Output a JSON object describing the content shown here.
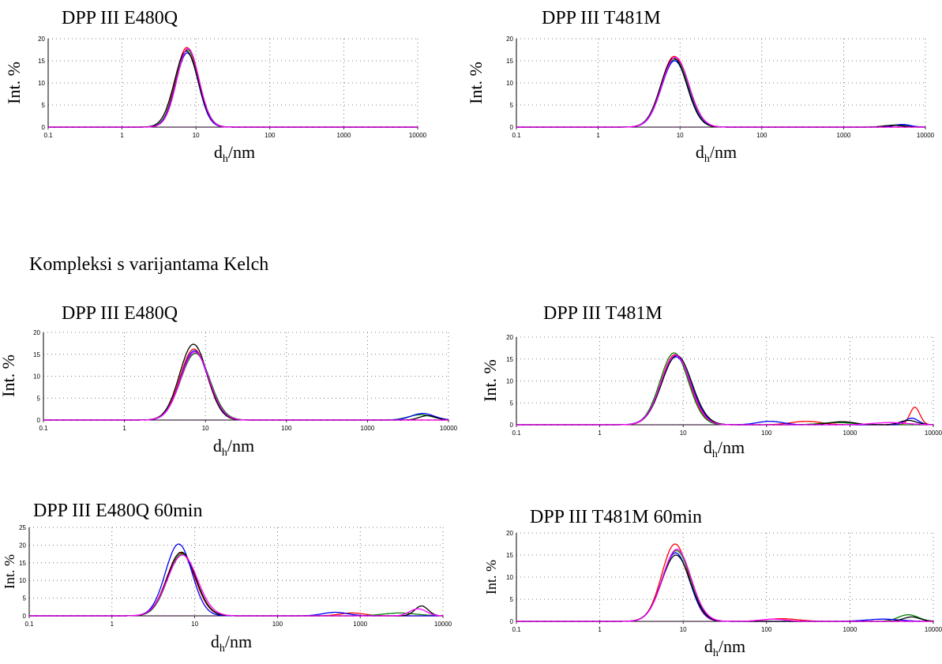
{
  "section_heading": "Kompleksi s varijantama Kelch",
  "colors": {
    "series": [
      "#ff0000",
      "#008000",
      "#0000ff",
      "#000000",
      "#ff00ff",
      "#800080",
      "#ffa500"
    ]
  },
  "chart_data": [
    {
      "type": "line",
      "title": "DPP III E480Q",
      "ylabel": "Int. %",
      "xlabel": "d",
      "xlabel_sub": "h",
      "xlabel_suffix": "/nm",
      "x_scale": "log",
      "xlim": [
        0.1,
        10000
      ],
      "ylim": [
        0,
        20
      ],
      "yticks": [
        0,
        5,
        10,
        15,
        20
      ],
      "xticks": [
        "0.1",
        "1",
        "10",
        "100",
        "1000",
        "10000"
      ],
      "grid": true,
      "series": [
        {
          "peaks": [
            {
              "mu": 7.5,
              "sigma": 0.15,
              "height": 18.0
            }
          ]
        },
        {
          "peaks": [
            {
              "mu": 7.7,
              "sigma": 0.155,
              "height": 17.5
            }
          ]
        },
        {
          "peaks": [
            {
              "mu": 7.6,
              "sigma": 0.15,
              "height": 16.8
            }
          ]
        },
        {
          "peaks": [
            {
              "mu": 7.4,
              "sigma": 0.16,
              "height": 17.2
            }
          ]
        },
        {
          "peaks": [
            {
              "mu": 7.8,
              "sigma": 0.15,
              "height": 17.8
            }
          ]
        }
      ]
    },
    {
      "type": "line",
      "title": "DPP III T481M",
      "ylabel": "Int. %",
      "xlabel": "d",
      "xlabel_sub": "h",
      "xlabel_suffix": "/nm",
      "x_scale": "log",
      "xlim": [
        0.1,
        10000
      ],
      "ylim": [
        0,
        20
      ],
      "yticks": [
        0,
        5,
        10,
        15,
        20
      ],
      "xticks": [
        "0.1",
        "1",
        "10",
        "100",
        "1000",
        "10000"
      ],
      "grid": true,
      "series": [
        {
          "peaks": [
            {
              "mu": 8.5,
              "sigma": 0.16,
              "height": 16.0
            }
          ]
        },
        {
          "peaks": [
            {
              "mu": 8.7,
              "sigma": 0.165,
              "height": 15.3
            },
            {
              "mu": 4500,
              "sigma": 0.12,
              "height": 0.5
            }
          ]
        },
        {
          "peaks": [
            {
              "mu": 8.6,
              "sigma": 0.16,
              "height": 15.0
            },
            {
              "mu": 5200,
              "sigma": 0.1,
              "height": 0.6
            }
          ]
        },
        {
          "peaks": [
            {
              "mu": 8.4,
              "sigma": 0.16,
              "height": 15.6
            },
            {
              "mu": 4000,
              "sigma": 0.12,
              "height": 0.4
            }
          ]
        },
        {
          "peaks": [
            {
              "mu": 8.8,
              "sigma": 0.165,
              "height": 15.8
            }
          ]
        }
      ]
    },
    {
      "type": "line",
      "title": "DPP III E480Q",
      "ylabel": "Int. %",
      "xlabel": "d",
      "xlabel_sub": "h",
      "xlabel_suffix": "/nm",
      "x_scale": "log",
      "xlim": [
        0.1,
        10000
      ],
      "ylim": [
        0,
        20
      ],
      "yticks": [
        0,
        5,
        10,
        15,
        20
      ],
      "xticks": [
        "0.1",
        "1",
        "10",
        "100",
        "1000",
        "10000"
      ],
      "grid": true,
      "series": [
        {
          "peaks": [
            {
              "mu": 7.2,
              "sigma": 0.17,
              "height": 16.2
            }
          ]
        },
        {
          "peaks": [
            {
              "mu": 7.5,
              "sigma": 0.18,
              "height": 15.2
            },
            {
              "mu": 4500,
              "sigma": 0.15,
              "height": 1.2
            }
          ]
        },
        {
          "peaks": [
            {
              "mu": 7.3,
              "sigma": 0.17,
              "height": 15.8
            },
            {
              "mu": 4800,
              "sigma": 0.14,
              "height": 1.5
            }
          ]
        },
        {
          "peaks": [
            {
              "mu": 7.1,
              "sigma": 0.17,
              "height": 17.3
            },
            {
              "mu": 5500,
              "sigma": 0.1,
              "height": 1.0
            }
          ]
        },
        {
          "peaks": [
            {
              "mu": 7.4,
              "sigma": 0.175,
              "height": 15.5
            }
          ]
        }
      ]
    },
    {
      "type": "line",
      "title": "DPP III T481M",
      "ylabel": "Int. %",
      "xlabel": "d",
      "xlabel_sub": "h",
      "xlabel_suffix": "/nm",
      "x_scale": "log",
      "xlim": [
        0.1,
        10000
      ],
      "ylim": [
        0,
        20
      ],
      "yticks": [
        0,
        5,
        10,
        15,
        20
      ],
      "xticks": [
        "0.1",
        "1",
        "10",
        "100",
        "1000",
        "10000"
      ],
      "grid": true,
      "series": [
        {
          "peaks": [
            {
              "mu": 8.0,
              "sigma": 0.17,
              "height": 16.0
            },
            {
              "mu": 300,
              "sigma": 0.18,
              "height": 0.8
            },
            {
              "mu": 6000,
              "sigma": 0.06,
              "height": 4.0
            }
          ]
        },
        {
          "peaks": [
            {
              "mu": 7.8,
              "sigma": 0.17,
              "height": 16.4
            },
            {
              "mu": 700,
              "sigma": 0.2,
              "height": 0.5
            }
          ]
        },
        {
          "peaks": [
            {
              "mu": 8.2,
              "sigma": 0.18,
              "height": 15.5
            },
            {
              "mu": 110,
              "sigma": 0.15,
              "height": 0.8
            },
            {
              "mu": 5500,
              "sigma": 0.08,
              "height": 1.5
            }
          ]
        },
        {
          "peaks": [
            {
              "mu": 8.4,
              "sigma": 0.18,
              "height": 15.8
            },
            {
              "mu": 800,
              "sigma": 0.15,
              "height": 0.7
            },
            {
              "mu": 5000,
              "sigma": 0.1,
              "height": 1.0
            }
          ]
        },
        {
          "peaks": [
            {
              "mu": 8.1,
              "sigma": 0.175,
              "height": 15.9
            },
            {
              "mu": 3000,
              "sigma": 0.2,
              "height": 0.5
            }
          ]
        }
      ]
    },
    {
      "type": "line",
      "title": "DPP III E480Q 60min",
      "ylabel": "Int. %",
      "xlabel": "d",
      "xlabel_sub": "h",
      "xlabel_suffix": "/nm",
      "x_scale": "log",
      "xlim": [
        0.1,
        10000
      ],
      "ylim": [
        0,
        25
      ],
      "yticks": [
        0,
        5,
        10,
        15,
        20,
        25
      ],
      "xticks": [
        "0.1",
        "1",
        "10",
        "100",
        "1000",
        "10000"
      ],
      "grid": true,
      "series": [
        {
          "peaks": [
            {
              "mu": 6.8,
              "sigma": 0.17,
              "height": 17.8
            },
            {
              "mu": 800,
              "sigma": 0.15,
              "height": 0.8
            }
          ]
        },
        {
          "peaks": [
            {
              "mu": 7.0,
              "sigma": 0.17,
              "height": 17.5
            },
            {
              "mu": 3000,
              "sigma": 0.2,
              "height": 0.8
            }
          ]
        },
        {
          "peaks": [
            {
              "mu": 6.4,
              "sigma": 0.16,
              "height": 20.3
            },
            {
              "mu": 500,
              "sigma": 0.15,
              "height": 1.0
            }
          ]
        },
        {
          "peaks": [
            {
              "mu": 6.9,
              "sigma": 0.17,
              "height": 18.0
            },
            {
              "mu": 5500,
              "sigma": 0.08,
              "height": 2.8
            }
          ]
        },
        {
          "peaks": [
            {
              "mu": 7.1,
              "sigma": 0.18,
              "height": 17.2
            },
            {
              "mu": 5000,
              "sigma": 0.1,
              "height": 2.0
            }
          ]
        }
      ]
    },
    {
      "type": "line",
      "title": "DPP III T481M 60min",
      "ylabel": "Int. %",
      "xlabel": "d",
      "xlabel_sub": "h",
      "xlabel_suffix": "/nm",
      "x_scale": "log",
      "xlim": [
        0.1,
        10000
      ],
      "ylim": [
        0,
        20
      ],
      "yticks": [
        0,
        5,
        10,
        15,
        20
      ],
      "xticks": [
        "0.1",
        "1",
        "10",
        "100",
        "1000",
        "10000"
      ],
      "grid": true,
      "series": [
        {
          "peaks": [
            {
              "mu": 8.0,
              "sigma": 0.16,
              "height": 17.5
            },
            {
              "mu": 150,
              "sigma": 0.2,
              "height": 0.6
            }
          ]
        },
        {
          "peaks": [
            {
              "mu": 8.3,
              "sigma": 0.17,
              "height": 16.0
            },
            {
              "mu": 5000,
              "sigma": 0.12,
              "height": 1.5
            }
          ]
        },
        {
          "peaks": [
            {
              "mu": 8.1,
              "sigma": 0.165,
              "height": 15.5
            },
            {
              "mu": 2500,
              "sigma": 0.2,
              "height": 0.5
            }
          ]
        },
        {
          "peaks": [
            {
              "mu": 8.2,
              "sigma": 0.17,
              "height": 15.0
            },
            {
              "mu": 5500,
              "sigma": 0.1,
              "height": 1.0
            }
          ]
        },
        {
          "peaks": [
            {
              "mu": 8.4,
              "sigma": 0.17,
              "height": 16.3
            },
            {
              "mu": 120,
              "sigma": 0.15,
              "height": 0.5
            }
          ]
        }
      ]
    }
  ]
}
